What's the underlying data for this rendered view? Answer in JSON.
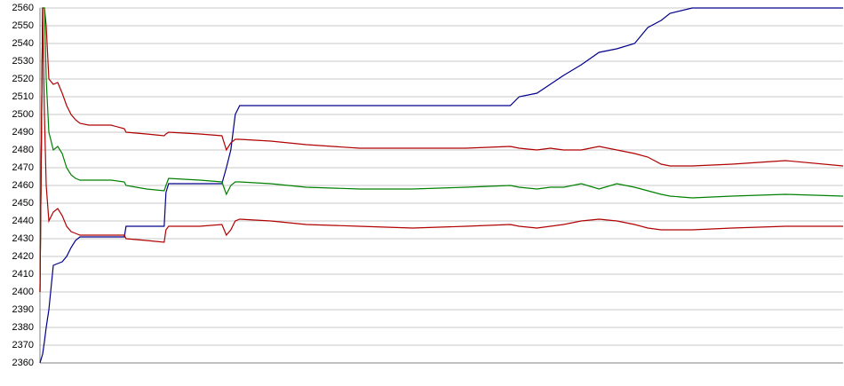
{
  "chart_data": {
    "type": "line",
    "x": [
      0,
      3,
      5,
      7,
      10,
      15,
      20,
      25,
      30,
      35,
      40,
      45,
      55,
      65,
      80,
      95,
      97,
      120,
      140,
      142,
      145,
      180,
      205,
      210,
      215,
      220,
      225,
      260,
      300,
      360,
      420,
      480,
      530,
      540,
      560,
      575,
      590,
      610,
      630,
      650,
      670,
      685,
      700,
      710,
      735,
      780,
      840,
      905
    ],
    "xlim": [
      0,
      905
    ],
    "ylim": [
      2360,
      2560
    ],
    "yticks": [
      2360,
      2370,
      2380,
      2390,
      2400,
      2410,
      2420,
      2430,
      2440,
      2450,
      2460,
      2470,
      2480,
      2490,
      2500,
      2510,
      2520,
      2530,
      2540,
      2550,
      2560
    ],
    "grid": true,
    "series": [
      {
        "color": "#00008b",
        "values": [
          2360,
          2365,
          2372,
          2380,
          2390,
          2415,
          2416,
          2417,
          2420,
          2425,
          2429,
          2431,
          2431,
          2431,
          2431,
          2431,
          2437,
          2437,
          2437,
          2456,
          2461,
          2461,
          2461,
          2470,
          2480,
          2500,
          2505,
          2505,
          2505,
          2505,
          2505,
          2505,
          2505,
          2510,
          2512,
          2517,
          2522,
          2528,
          2535,
          2537,
          2540,
          2549,
          2553,
          2557,
          2560,
          2560,
          2560,
          2560
        ]
      },
      {
        "color": "#b00000",
        "values": [
          2400,
          2560,
          2560,
          2550,
          2520,
          2517,
          2518,
          2512,
          2505,
          2500,
          2497,
          2495,
          2494,
          2494,
          2494,
          2492,
          2490,
          2489,
          2488,
          2489,
          2490,
          2489,
          2488,
          2480,
          2484,
          2486,
          2486,
          2485,
          2483,
          2481,
          2481,
          2481,
          2482,
          2481,
          2480,
          2481,
          2480,
          2480,
          2482,
          2480,
          2478,
          2476,
          2472,
          2471,
          2471,
          2472,
          2474,
          2471
        ]
      },
      {
        "color": "#008000",
        "values": [
          2400,
          2560,
          2560,
          2520,
          2490,
          2480,
          2482,
          2478,
          2470,
          2466,
          2464,
          2463,
          2463,
          2463,
          2463,
          2462,
          2460,
          2458,
          2457,
          2460,
          2464,
          2463,
          2462,
          2455,
          2460,
          2462,
          2462,
          2461,
          2459,
          2458,
          2458,
          2459,
          2460,
          2459,
          2458,
          2459,
          2459,
          2461,
          2458,
          2461,
          2459,
          2457,
          2455,
          2454,
          2453,
          2454,
          2455,
          2454
        ]
      },
      {
        "color": "#b00000",
        "values": [
          2400,
          2560,
          2500,
          2460,
          2440,
          2445,
          2447,
          2443,
          2437,
          2434,
          2433,
          2432,
          2432,
          2432,
          2432,
          2432,
          2430,
          2429,
          2428,
          2435,
          2437,
          2437,
          2438,
          2432,
          2435,
          2440,
          2441,
          2440,
          2438,
          2437,
          2436,
          2437,
          2438,
          2437,
          2436,
          2437,
          2438,
          2440,
          2441,
          2440,
          2438,
          2436,
          2435,
          2435,
          2435,
          2436,
          2437,
          2437
        ]
      }
    ]
  }
}
